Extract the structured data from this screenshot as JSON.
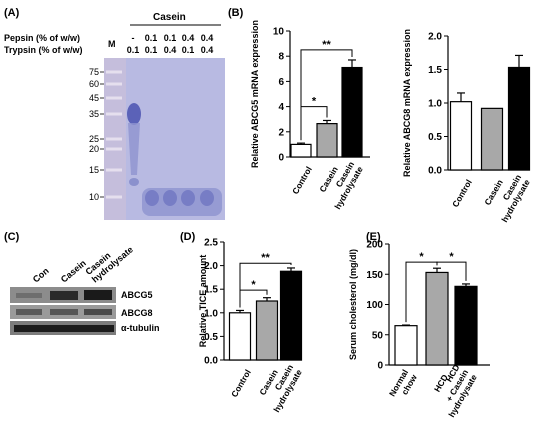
{
  "figure": {
    "panel_labels": {
      "A": "(A)",
      "B": "(B)",
      "C": "(C)",
      "D": "(D)",
      "E": "(E)"
    }
  },
  "colors": {
    "white_bar": "#ffffff",
    "gray_bar": "#a8a8a8",
    "black_bar": "#000000",
    "gel_bg": "#b9bbe3",
    "band_dark": "#5d63b8"
  },
  "panel_a": {
    "header": "Casein",
    "row1_label": "Pepsin (% of w/w)",
    "row2_label": "Trypsin (% of w/w)",
    "marker_label": "M",
    "row1_values": [
      "-",
      "0.1",
      "0.1",
      "0.4",
      "0.4"
    ],
    "row2_values": [
      "0.1",
      "0.1",
      "0.4",
      "0.1",
      "0.4"
    ],
    "ladder": [
      "75",
      "60",
      "45",
      "35",
      "25",
      "20",
      "15",
      "10"
    ]
  },
  "panel_c": {
    "lanes": [
      "Con",
      "Casein",
      "Casein hydrolysate"
    ],
    "bands": [
      "ABCG5",
      "ABCG8",
      "α-tubulin"
    ]
  },
  "chart_data": [
    {
      "id": "abcg5",
      "type": "bar",
      "ylabel": "Relative ABCG5 mRNA expression",
      "categories": [
        "Control",
        "Casein",
        "Casein hydrolysate"
      ],
      "values": [
        1.0,
        2.65,
        7.1
      ],
      "errors": [
        0.1,
        0.25,
        0.6
      ],
      "ylim": [
        0,
        10
      ],
      "yticks": [
        "0",
        "2",
        "4",
        "6",
        "8",
        "10"
      ],
      "significance": [
        "*",
        "**"
      ]
    },
    {
      "id": "abcg8",
      "type": "bar",
      "ylabel": "Relative ABCG8 mRNA expression",
      "categories": [
        "Control",
        "Casein",
        "Casein hydrolysate"
      ],
      "values": [
        1.02,
        0.92,
        1.53
      ],
      "errors": [
        0.13,
        0.0,
        0.18
      ],
      "ylim": [
        0,
        2.0
      ],
      "yticks": [
        "0.0",
        "0.5",
        "1.0",
        "1.5",
        "2.0"
      ],
      "significance": []
    },
    {
      "id": "tice",
      "type": "bar",
      "ylabel": "Relative TICE amount",
      "categories": [
        "Control",
        "Casein",
        "Casein hydrolysate"
      ],
      "values": [
        1.0,
        1.25,
        1.88
      ],
      "errors": [
        0.05,
        0.07,
        0.07
      ],
      "ylim": [
        0,
        2.5
      ],
      "yticks": [
        "0.0",
        "0.5",
        "1.0",
        "1.5",
        "2.0",
        "2.5"
      ],
      "significance": [
        "*",
        "**"
      ]
    },
    {
      "id": "serum",
      "type": "bar",
      "ylabel": "Serum cholesterol (mg/dl)",
      "categories": [
        "Normal chow",
        "HCD",
        "HCD + Casein hydrolysate"
      ],
      "values": [
        65,
        153,
        130
      ],
      "errors": [
        1,
        7,
        4
      ],
      "ylim": [
        0,
        200
      ],
      "yticks": [
        "0",
        "50",
        "100",
        "150",
        "200"
      ],
      "significance": [
        "*",
        "*"
      ]
    }
  ]
}
